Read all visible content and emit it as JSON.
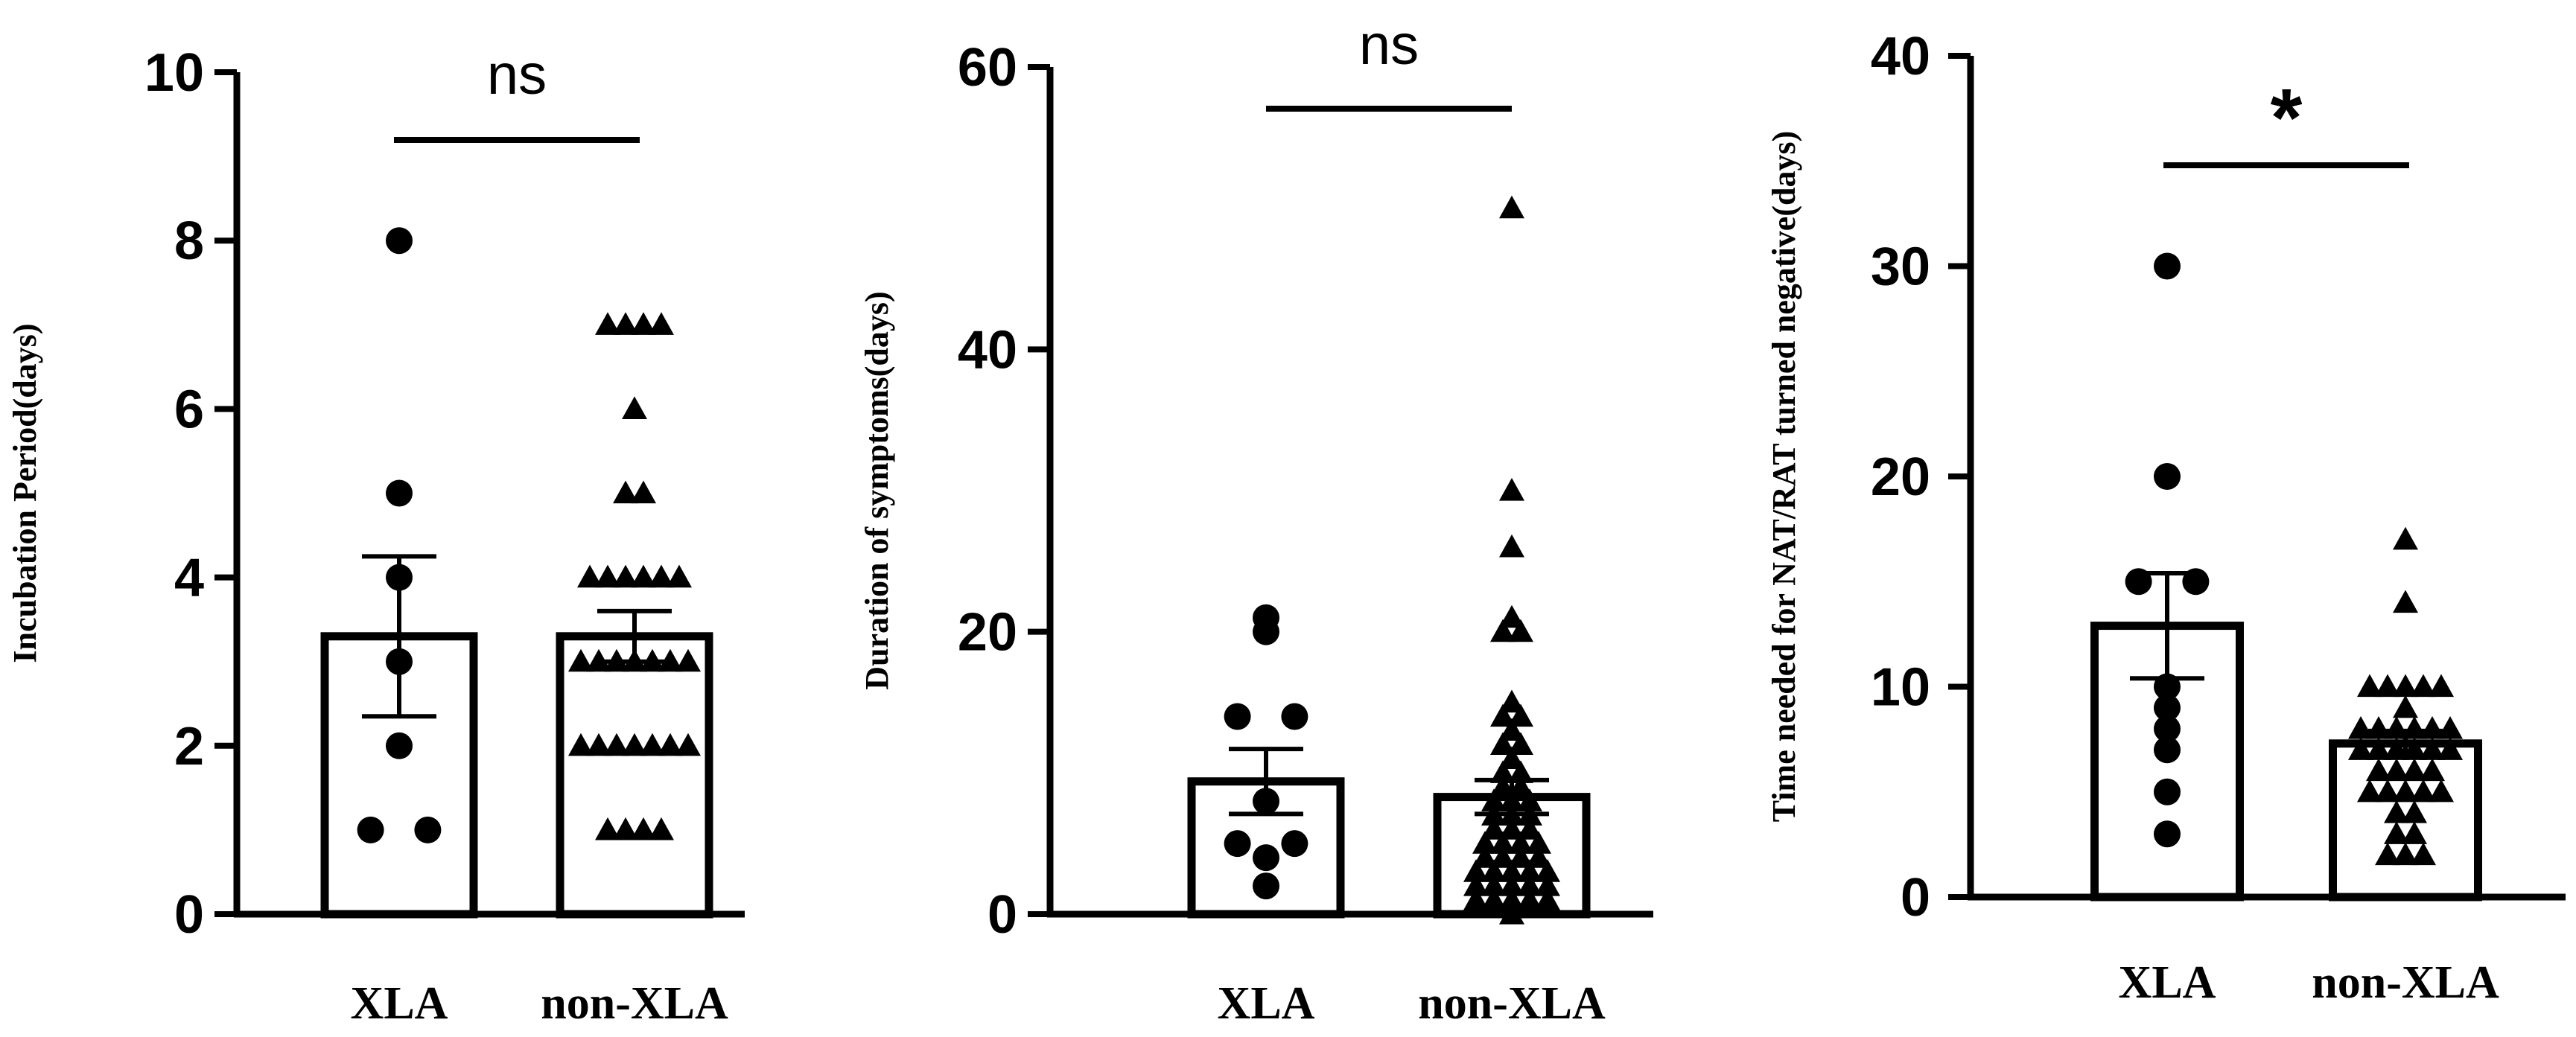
{
  "chart_data": [
    {
      "type": "bar",
      "ylabel": "Incubation Period(days)",
      "categories": [
        "XLA",
        "non-XLA"
      ],
      "ylim": [
        0,
        10
      ],
      "yticks": [
        0,
        2,
        4,
        6,
        8,
        10
      ],
      "significance": "ns",
      "bars": [
        {
          "category": "XLA",
          "mean": 3.3,
          "sem": 0.95,
          "marker": "circle",
          "points": [
            8,
            5,
            4,
            3,
            2,
            1,
            1
          ]
        },
        {
          "category": "non-XLA",
          "mean": 3.3,
          "sem": 0.3,
          "marker": "triangle",
          "points": [
            7,
            7,
            7,
            7,
            6,
            5,
            5,
            4,
            4,
            4,
            4,
            4,
            4,
            3,
            3,
            3,
            3,
            3,
            3,
            3,
            2,
            2,
            2,
            2,
            2,
            2,
            2,
            1,
            1,
            1,
            1
          ]
        }
      ]
    },
    {
      "type": "bar",
      "ylabel": "Duration of symptoms(days)",
      "categories": [
        "XLA",
        "non-XLA"
      ],
      "ylim": [
        0,
        60
      ],
      "yticks": [
        0,
        20,
        40,
        60
      ],
      "significance": "ns",
      "bars": [
        {
          "category": "XLA",
          "mean": 9.4,
          "sem": 2.3,
          "marker": "circle",
          "points": [
            21,
            20,
            14,
            14,
            8,
            5,
            5,
            4,
            2
          ]
        },
        {
          "category": "non-XLA",
          "mean": 8.3,
          "sem": 1.2,
          "marker": "triangle",
          "points": [
            50,
            30,
            26,
            21,
            20,
            20,
            15,
            14,
            14,
            13,
            12,
            12,
            11,
            10,
            10,
            9,
            9,
            8,
            8,
            8,
            7,
            7,
            7,
            6,
            6,
            6,
            5,
            5,
            5,
            5,
            4,
            4,
            4,
            4,
            3,
            3,
            3,
            3,
            3,
            2,
            2,
            2,
            2,
            2,
            1,
            1,
            1,
            1,
            1,
            0
          ]
        }
      ]
    },
    {
      "type": "bar",
      "ylabel": "Time needed for NAT/RAT turned negative(days)",
      "categories": [
        "XLA",
        "non-XLA"
      ],
      "ylim": [
        0,
        40
      ],
      "yticks": [
        0,
        10,
        20,
        30,
        40
      ],
      "significance": "*",
      "bars": [
        {
          "category": "XLA",
          "mean": 12.9,
          "sem": 2.5,
          "marker": "circle",
          "points": [
            30,
            20,
            15,
            15,
            10,
            9,
            8,
            7,
            5,
            3
          ]
        },
        {
          "category": "non-XLA",
          "mean": 7.3,
          "sem": 0.6,
          "marker": "triangle",
          "points": [
            17,
            14,
            10,
            10,
            10,
            10,
            10,
            9,
            8,
            8,
            8,
            8,
            8,
            8,
            7,
            7,
            7,
            7,
            7,
            7,
            6,
            6,
            6,
            6,
            5,
            5,
            5,
            5,
            5,
            4,
            4,
            3,
            3,
            2,
            2,
            2
          ]
        }
      ]
    }
  ]
}
